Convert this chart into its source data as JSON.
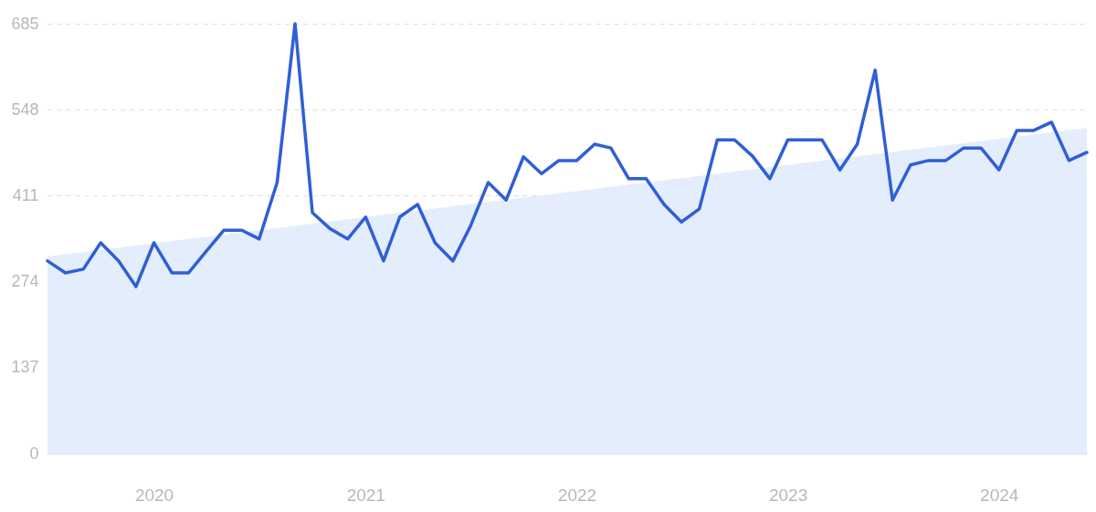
{
  "chart_data": {
    "type": "line",
    "xlim": [
      "2019-07",
      "2024-06"
    ],
    "xticks": [
      {
        "value": "2020-01",
        "label": "2020"
      },
      {
        "value": "2021-01",
        "label": "2021"
      },
      {
        "value": "2022-01",
        "label": "2022"
      },
      {
        "value": "2023-01",
        "label": "2023"
      },
      {
        "value": "2024-01",
        "label": "2024"
      }
    ],
    "ylim": [
      0,
      685
    ],
    "yticks": [
      0,
      137,
      274,
      411,
      548,
      685
    ],
    "grid": "y",
    "series": [
      {
        "type": "area",
        "color": "#e3edfb",
        "x": [
          "2019-07",
          "2024-06"
        ],
        "values": [
          314,
          519
        ]
      },
      {
        "type": "line",
        "color": "#2f5fd6",
        "x": [
          "2019-07",
          "2019-08",
          "2019-09",
          "2019-10",
          "2019-11",
          "2019-12",
          "2020-01",
          "2020-02",
          "2020-03",
          "2020-04",
          "2020-05",
          "2020-06",
          "2020-07",
          "2020-08",
          "2020-09",
          "2020-10",
          "2020-11",
          "2020-12",
          "2021-01",
          "2021-02",
          "2021-03",
          "2021-04",
          "2021-05",
          "2021-06",
          "2021-07",
          "2021-08",
          "2021-09",
          "2021-10",
          "2021-11",
          "2021-12",
          "2022-01",
          "2022-02",
          "2022-03",
          "2022-04",
          "2022-05",
          "2022-06",
          "2022-07",
          "2022-08",
          "2022-09",
          "2022-10",
          "2022-11",
          "2022-12",
          "2023-01",
          "2023-02",
          "2023-03",
          "2023-04",
          "2023-05",
          "2023-06",
          "2023-07",
          "2023-08",
          "2023-09",
          "2023-10",
          "2023-11",
          "2023-12",
          "2024-01",
          "2024-02",
          "2024-03",
          "2024-04",
          "2024-05",
          "2024-06"
        ],
        "values": [
          307,
          288,
          294,
          336,
          307,
          266,
          336,
          288,
          288,
          323,
          356,
          356,
          342,
          432,
          685,
          384,
          358,
          342,
          377,
          307,
          377,
          397,
          336,
          307,
          362,
          432,
          404,
          473,
          446,
          467,
          467,
          493,
          487,
          438,
          438,
          397,
          369,
          390,
          500,
          500,
          474,
          438,
          500,
          500,
          500,
          452,
          493,
          611,
          404,
          460,
          467,
          467,
          487,
          487,
          452,
          515,
          515,
          528,
          467,
          480
        ]
      }
    ]
  }
}
